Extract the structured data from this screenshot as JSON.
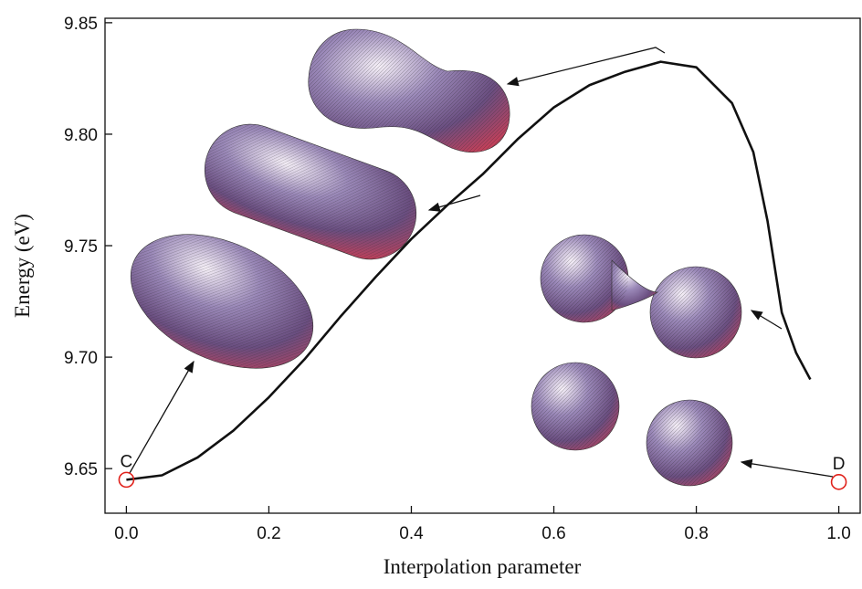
{
  "chart_data": {
    "type": "line",
    "xlabel": "Interpolation parameter",
    "ylabel": "Energy (eV)",
    "xlim": [
      -0.03,
      1.03
    ],
    "ylim": [
      9.63,
      9.852
    ],
    "xticks": [
      {
        "value": 0,
        "label": "0.0"
      },
      0.2,
      0.4,
      0.6,
      0.8,
      {
        "value": 1,
        "label": "1.0"
      }
    ],
    "yticks": [
      9.65,
      {
        "value": 9.7,
        "label": "9.70"
      },
      9.75,
      {
        "value": 9.8,
        "label": "9.80"
      },
      9.85
    ],
    "x": [
      0,
      0.05,
      0.1,
      0.15,
      0.2,
      0.25,
      0.3,
      0.35,
      0.4,
      0.45,
      0.5,
      0.55,
      0.6,
      0.65,
      0.7,
      0.75,
      0.8,
      0.85,
      0.88,
      0.9,
      0.92,
      0.94,
      0.96
    ],
    "series": [
      {
        "color": "#111111",
        "values": [
          9.645,
          9.647,
          9.655,
          9.667,
          9.682,
          9.699,
          9.718,
          9.736,
          9.753,
          9.768,
          9.782,
          9.798,
          9.812,
          9.822,
          9.828,
          9.8325,
          9.83,
          9.814,
          9.792,
          9.761,
          9.72,
          9.702,
          9.69
        ]
      }
    ],
    "points": [
      {
        "label": "C",
        "x": 0,
        "y": 9.645,
        "color": "#e0201a"
      },
      {
        "label": "D",
        "x": 1,
        "y": 9.644,
        "color": "#e0201a"
      }
    ]
  }
}
